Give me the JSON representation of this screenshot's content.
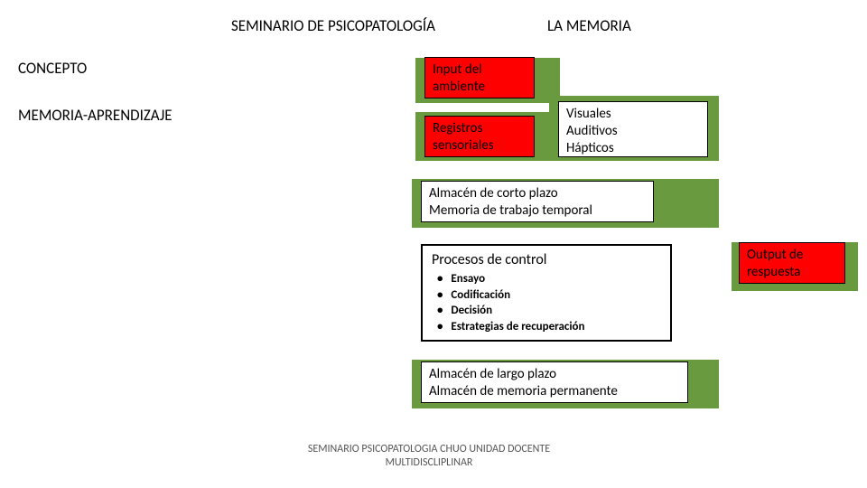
{
  "header": {
    "left": "SEMINARIO DE PSICOPATOLOGÍA",
    "right": "LA MEMORIA"
  },
  "sidebar": {
    "concepto": "CONCEPTO",
    "mem_aprend": "MEMORIA-APRENDIZAJE"
  },
  "boxes": {
    "input_ambiente": {
      "line1": "Input del",
      "line2": "ambiente"
    },
    "registros": {
      "line1": "Registros",
      "line2": "sensoriales"
    },
    "tipos": {
      "line1": "Visuales",
      "line2": "Auditivos",
      "line3": "Hápticos"
    },
    "corto_plazo": {
      "line1": "Almacén de corto plazo",
      "line2": "Memoria de trabajo temporal"
    },
    "procesos": {
      "title": "Procesos de control",
      "items": [
        "Ensayo",
        "Codificación",
        "Decisión",
        "Estrategias de recuperación"
      ]
    },
    "output": {
      "line1": "Output de",
      "line2": "respuesta"
    },
    "largo_plazo": {
      "line1": "Almacén de largo plazo",
      "line2": "Almacén de memoria permanente"
    }
  },
  "footer": {
    "line1": "SEMINARIO PSICOPATOLOGIA CHUO UNIDAD DOCENTE",
    "line2": "MULTIDISCLIPLINAR"
  },
  "colors": {
    "green": "#6a9a3f",
    "red": "#ff0000",
    "background": "#ffffff",
    "text": "#000000",
    "footer_text": "#666666"
  },
  "diagram_type": "flowchart",
  "fontsize": {
    "header": 17,
    "body": 15,
    "list": 13,
    "footer": 12
  }
}
